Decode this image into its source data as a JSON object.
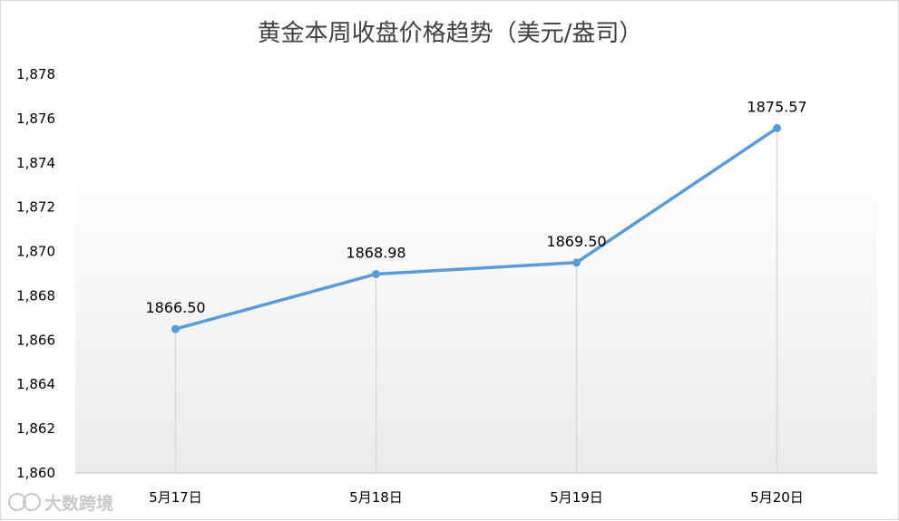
{
  "chart_data": {
    "type": "line",
    "title": "黄金本周收盘价格趋势（美元/盎司）",
    "xlabel": "",
    "ylabel": "",
    "categories": [
      "5月17日",
      "5月18日",
      "5月19日",
      "5月20日"
    ],
    "series": [
      {
        "values": [
          1866.5,
          1868.98,
          1869.5,
          1875.57
        ]
      }
    ],
    "data_labels": [
      "1866.50",
      "1868.98",
      "1869.50",
      "1875.57"
    ],
    "ylim": [
      1860,
      1878
    ],
    "yticks": [
      1860,
      1862,
      1864,
      1866,
      1868,
      1870,
      1872,
      1874,
      1876,
      1878
    ],
    "ytick_labels": [
      "1,860",
      "1,862",
      "1,864",
      "1,866",
      "1,868",
      "1,870",
      "1,872",
      "1,874",
      "1,876",
      "1,878"
    ],
    "grid": false,
    "drop_lines": true,
    "legend": "none",
    "line_color": "#5b9bd5",
    "drop_line_color": "#d9d9d9"
  },
  "watermark": {
    "text": "大数跨境"
  }
}
